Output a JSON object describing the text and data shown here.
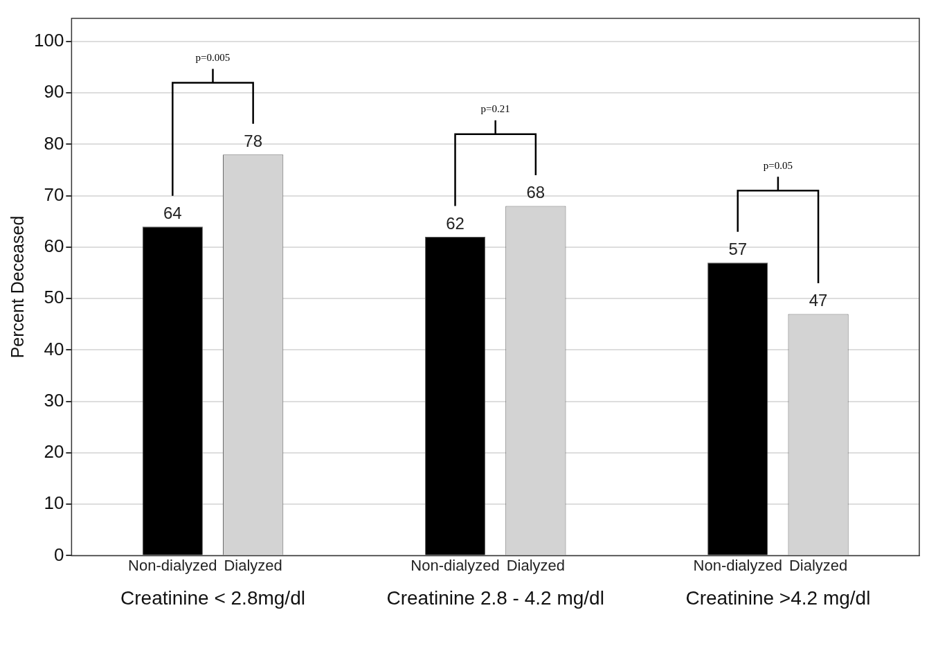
{
  "chart_data": {
    "type": "bar",
    "ylabel": "Percent Deceased",
    "categories": [
      "Creatinine < 2.8mg/dl",
      "Creatinine 2.8 - 4.2 mg/dl",
      "Creatinine >4.2 mg/dl"
    ],
    "series": [
      {
        "name": "Non-dialyzed",
        "color": "#000000",
        "values": [
          64,
          62,
          57
        ]
      },
      {
        "name": "Dialyzed",
        "color": "#d3d3d3",
        "values": [
          78,
          68,
          47
        ]
      }
    ],
    "ylim": [
      0,
      104.5
    ],
    "yticks": [
      0,
      10,
      20,
      30,
      40,
      50,
      60,
      70,
      80,
      90,
      100
    ],
    "grid": "y",
    "data_labels": true,
    "annotations": [
      "p=0.005",
      "p=0.21",
      "p=0.05"
    ]
  }
}
